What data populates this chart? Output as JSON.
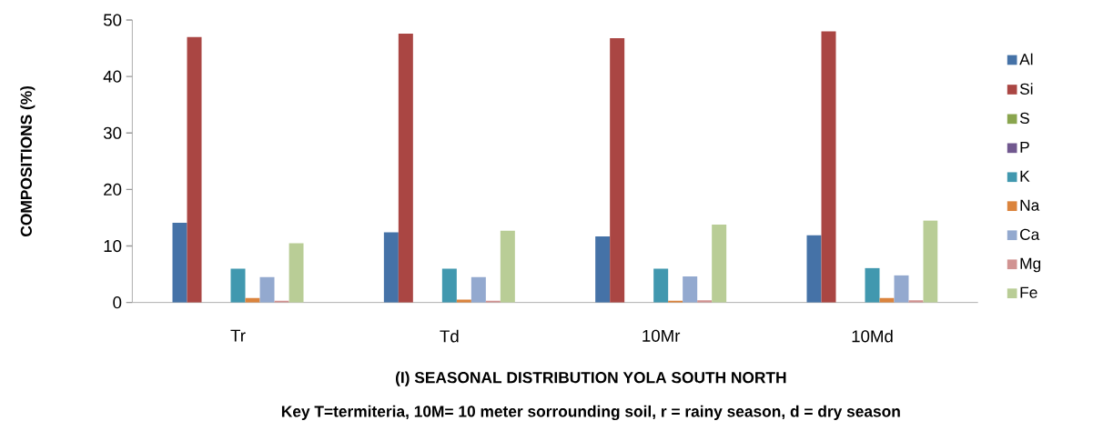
{
  "chart_data": {
    "type": "bar",
    "title": "(I) SEASONAL DISTRIBUTION YOLA  SOUTH  NORTH",
    "subtitle": "Key T=termiteria, 10M= 10 meter sorrounding soil, r = rainy season, d = dry season",
    "ylabel": "COMPOSITIONS (%)",
    "categories": [
      "Tr",
      "Td",
      "10Mr",
      "10Md"
    ],
    "series": [
      {
        "name": "Al",
        "color": "#4572a7",
        "values": [
          14.1,
          12.4,
          11.7,
          11.9
        ]
      },
      {
        "name": "Si",
        "color": "#aa4643",
        "values": [
          47,
          47.6,
          46.8,
          48
        ]
      },
      {
        "name": "S",
        "color": "#89a54e",
        "values": [
          0,
          0,
          0,
          0
        ]
      },
      {
        "name": "P",
        "color": "#71588f",
        "values": [
          0,
          0,
          0,
          0
        ]
      },
      {
        "name": "K",
        "color": "#4198af",
        "values": [
          6,
          6,
          6,
          6.1
        ]
      },
      {
        "name": "Na",
        "color": "#db843d",
        "values": [
          0.8,
          0.5,
          0.3,
          0.8
        ]
      },
      {
        "name": "Ca",
        "color": "#93a9cf",
        "values": [
          4.5,
          4.5,
          4.6,
          4.8
        ]
      },
      {
        "name": "Mg",
        "color": "#d19392",
        "values": [
          0.3,
          0.3,
          0.4,
          0.4
        ]
      },
      {
        "name": "Fe",
        "color": "#b9cd96",
        "values": [
          10.5,
          12.7,
          13.8,
          14.5
        ]
      }
    ],
    "ylim": [
      0,
      50
    ],
    "yticks": [
      0,
      10,
      20,
      30,
      40,
      50
    ],
    "grid": false,
    "legend": "right"
  }
}
